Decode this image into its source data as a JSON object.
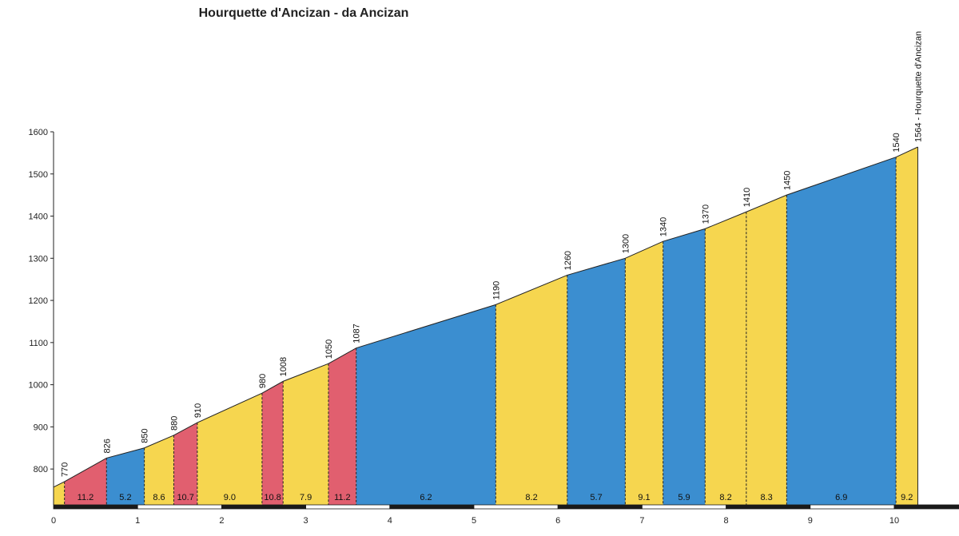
{
  "chart_data": {
    "type": "area",
    "title": "Hourquette d'Ancizan - da Ancizan",
    "xlabel": "",
    "ylabel": "",
    "xlim": [
      0,
      10.4
    ],
    "ylim": [
      715,
      1600
    ],
    "x_ticks": [
      0,
      1,
      2,
      3,
      4,
      5,
      6,
      7,
      8,
      9,
      10
    ],
    "y_ticks": [
      800,
      900,
      1000,
      1100,
      1200,
      1300,
      1400,
      1500,
      1600
    ],
    "grid": false,
    "start_elevation": 757,
    "points": [
      {
        "x": 0.13,
        "elevation": 770,
        "label": "770"
      },
      {
        "x": 0.63,
        "elevation": 826,
        "label": "826"
      },
      {
        "x": 1.08,
        "elevation": 850,
        "label": "850"
      },
      {
        "x": 1.43,
        "elevation": 880,
        "label": "880"
      },
      {
        "x": 1.71,
        "elevation": 910,
        "label": "910"
      },
      {
        "x": 2.48,
        "elevation": 980,
        "label": "980"
      },
      {
        "x": 2.73,
        "elevation": 1008,
        "label": "1008"
      },
      {
        "x": 3.27,
        "elevation": 1050,
        "label": "1050"
      },
      {
        "x": 3.6,
        "elevation": 1087,
        "label": "1087"
      },
      {
        "x": 5.26,
        "elevation": 1190,
        "label": "1190"
      },
      {
        "x": 6.11,
        "elevation": 1260,
        "label": "1260"
      },
      {
        "x": 6.8,
        "elevation": 1300,
        "label": "1300"
      },
      {
        "x": 7.25,
        "elevation": 1340,
        "label": "1340"
      },
      {
        "x": 7.75,
        "elevation": 1370,
        "label": "1370"
      },
      {
        "x": 8.24,
        "elevation": 1410,
        "label": "1410"
      },
      {
        "x": 8.72,
        "elevation": 1450,
        "label": "1450"
      },
      {
        "x": 10.02,
        "elevation": 1540,
        "label": "1540"
      },
      {
        "x": 10.28,
        "elevation": 1564,
        "label": "1564 - Hourquette d'Ancizan"
      }
    ],
    "segments": [
      {
        "gradient": "",
        "color": "#f6d64f"
      },
      {
        "gradient": "11.2",
        "color": "#e15f6f"
      },
      {
        "gradient": "5.2",
        "color": "#3b8ed0"
      },
      {
        "gradient": "8.6",
        "color": "#f6d64f"
      },
      {
        "gradient": "10.7",
        "color": "#e15f6f"
      },
      {
        "gradient": "9.0",
        "color": "#f6d64f"
      },
      {
        "gradient": "10.8",
        "color": "#e15f6f"
      },
      {
        "gradient": "7.9",
        "color": "#f6d64f"
      },
      {
        "gradient": "11.2",
        "color": "#e15f6f"
      },
      {
        "gradient": "6.2",
        "color": "#3b8ed0"
      },
      {
        "gradient": "8.2",
        "color": "#f6d64f"
      },
      {
        "gradient": "5.7",
        "color": "#3b8ed0"
      },
      {
        "gradient": "9.1",
        "color": "#f6d64f"
      },
      {
        "gradient": "5.9",
        "color": "#3b8ed0"
      },
      {
        "gradient": "8.2",
        "color": "#f6d64f"
      },
      {
        "gradient": "8.3",
        "color": "#f6d64f"
      },
      {
        "gradient": "6.9",
        "color": "#3b8ed0"
      },
      {
        "gradient": "9.2",
        "color": "#f6d64f"
      }
    ]
  }
}
